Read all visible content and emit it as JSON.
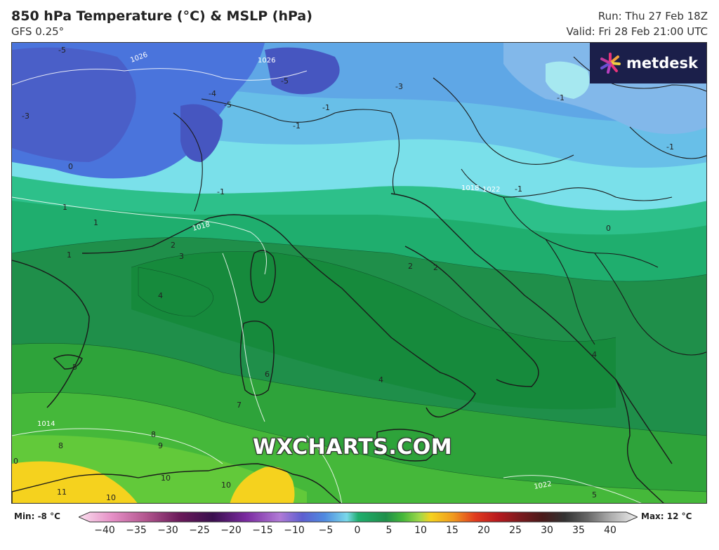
{
  "header": {
    "title": "850 hPa Temperature (°C) & MSLP (hPa)",
    "model": "GFS 0.25°",
    "run": "Run: Thu 27 Feb 18Z",
    "valid": "Valid: Fri 28 Feb 21:00 UTC"
  },
  "branding": {
    "logo_text": "metdesk",
    "watermark": "WXCHARTS.COM"
  },
  "legend": {
    "min_label": "Min: -8 °C",
    "max_label": "Max: 12 °C",
    "ticks": [
      "−40",
      "−35",
      "−30",
      "−25",
      "−20",
      "−15",
      "−10",
      "−5",
      "0",
      "5",
      "10",
      "15",
      "20",
      "25",
      "30",
      "35",
      "40"
    ]
  },
  "map_labels": {
    "temperature": [
      "-5",
      "-3",
      "-4",
      "-5",
      "-5",
      "-3",
      "-1",
      "-1",
      "-1",
      "-1",
      "-1",
      "-1",
      "1",
      "1",
      "1",
      "2",
      "2",
      "2",
      "3",
      "4",
      "4",
      "5",
      "6",
      "7",
      "8",
      "8",
      "9",
      "10",
      "10",
      "10",
      "11",
      "0",
      "0",
      "4",
      "5",
      "0"
    ],
    "pressure": [
      "1026",
      "1026",
      "1018",
      "1014",
      "1022",
      "1022",
      "1018"
    ]
  },
  "colors": {
    "logo_bg": "#1b1f4a",
    "frame": "#333333"
  }
}
